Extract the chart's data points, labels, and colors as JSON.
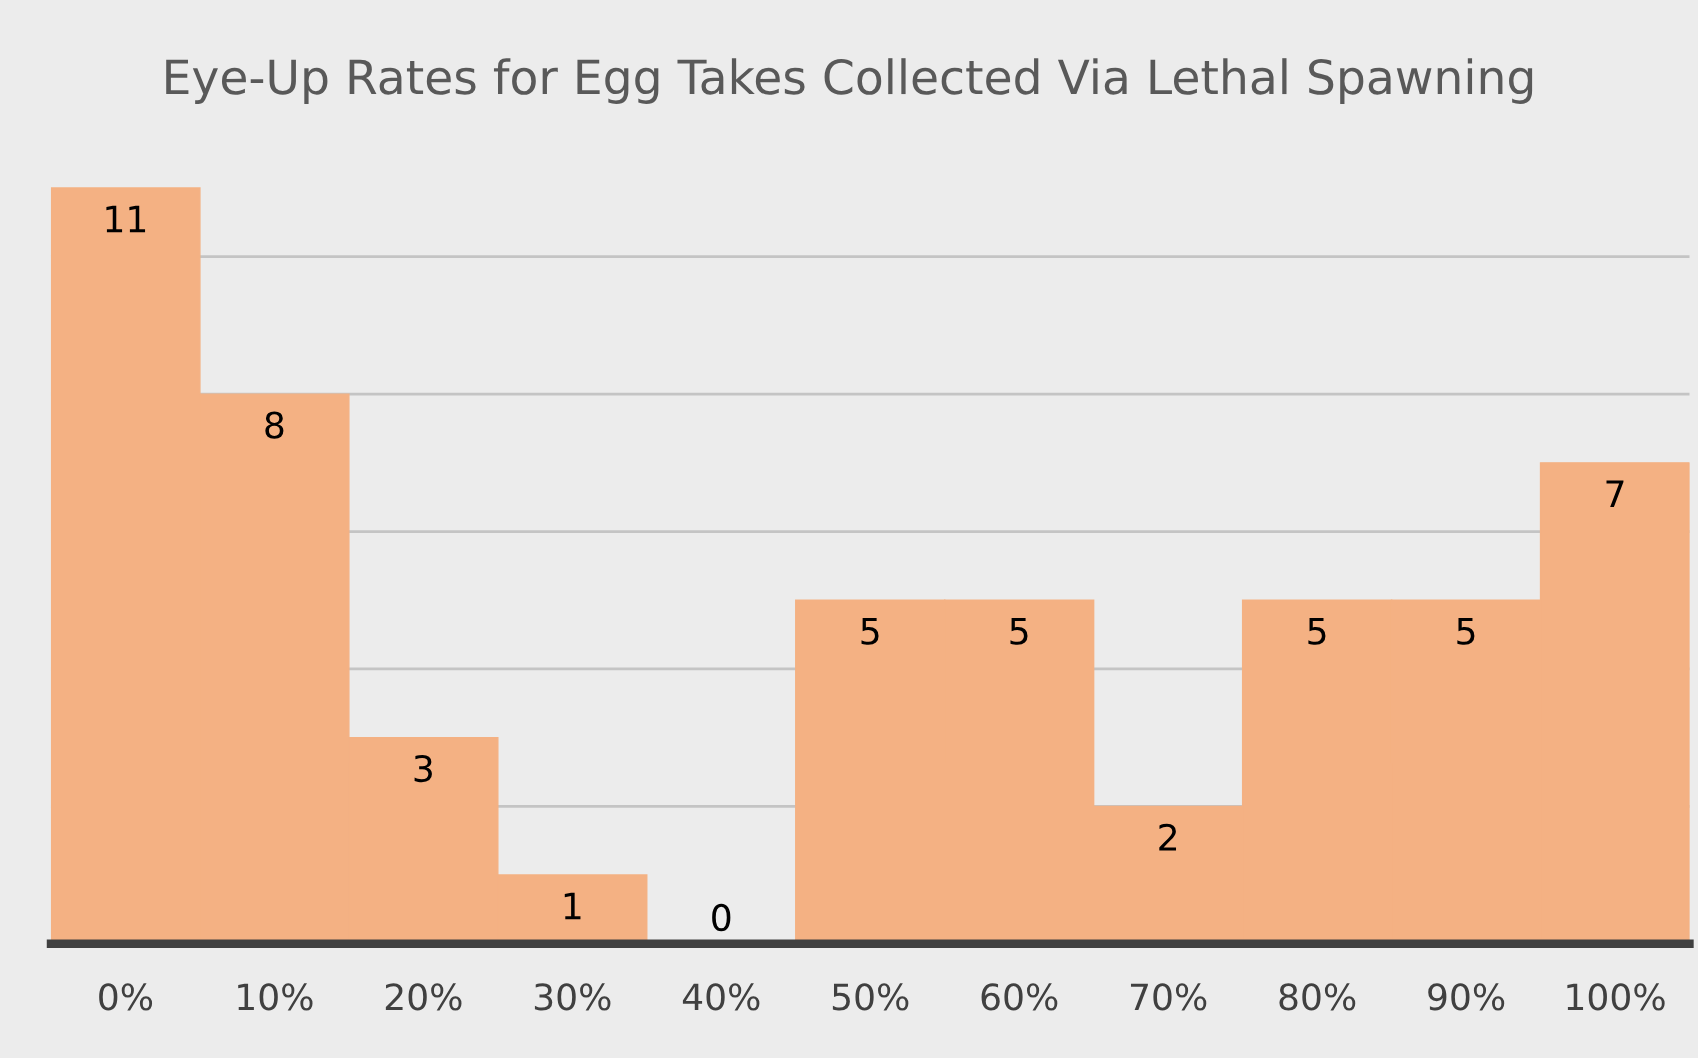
{
  "chart_data": {
    "type": "bar",
    "title": "Eye-Up Rates for Egg Takes Collected Via Lethal Spawning",
    "categories": [
      "0%",
      "10%",
      "20%",
      "30%",
      "40%",
      "50%",
      "60%",
      "70%",
      "80%",
      "90%",
      "100%"
    ],
    "values": [
      11,
      8,
      3,
      1,
      0,
      5,
      5,
      2,
      5,
      5,
      7
    ],
    "color": "#f4b183",
    "data_labels": true,
    "grid": "y",
    "yticks": [
      {
        "value": 0,
        "label": null
      },
      {
        "value": 2,
        "label": null
      },
      {
        "value": 4,
        "label": null
      },
      {
        "value": 6,
        "label": null
      },
      {
        "value": 8,
        "label": null
      },
      {
        "value": 10,
        "label": null
      }
    ],
    "tick_labels": "x",
    "legend": false
  }
}
